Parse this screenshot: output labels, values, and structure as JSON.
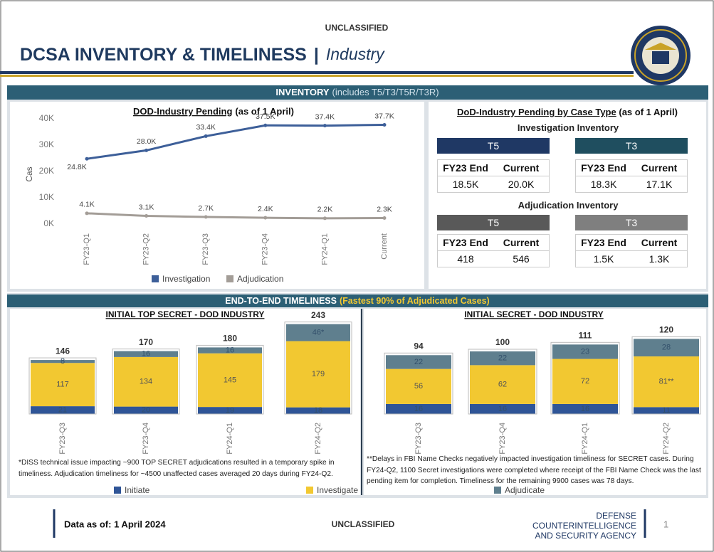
{
  "header": {
    "classification": "UNCLASSIFIED",
    "title": "DCSA INVENTORY & TIMELINESS",
    "separator": "|",
    "subtitle": "Industry"
  },
  "inventory": {
    "banner": "INVENTORY",
    "banner_note": "(includes T5/T3/T5R/T3R)"
  },
  "timeliness": {
    "banner": "END-TO-END TIMELINESS",
    "banner_note": "(Fastest 90% of Adjudicated Cases)"
  },
  "case_type": {
    "title": "DoD-Industry Pending by Case Type",
    "title_note": "(as of 1 April)",
    "sections": [
      {
        "label": "Investigation Inventory",
        "tables": [
          {
            "header": "T5",
            "columns": [
              "FY23 End",
              "Current"
            ],
            "values": [
              "18.5K",
              "20.0K"
            ]
          },
          {
            "header": "T3",
            "columns": [
              "FY23 End",
              "Current"
            ],
            "values": [
              "18.3K",
              "17.1K"
            ]
          }
        ]
      },
      {
        "label": "Adjudication Inventory",
        "tables": [
          {
            "header": "T5",
            "columns": [
              "FY23 End",
              "Current"
            ],
            "values": [
              "418",
              "546"
            ]
          },
          {
            "header": "T3",
            "columns": [
              "FY23 End",
              "Current"
            ],
            "values": [
              "1.5K",
              "1.3K"
            ]
          }
        ]
      }
    ]
  },
  "chart_data": [
    {
      "type": "line",
      "title": "DOD-Industry Pending",
      "title_note": "(as of 1 April)",
      "ylabel": "Cas",
      "categories": [
        "FY23-Q1",
        "FY23-Q2",
        "FY23-Q3",
        "FY23-Q4",
        "FY24-Q1",
        "Current"
      ],
      "series": [
        {
          "name": "Investigation",
          "color": "#3d5f99",
          "values": [
            24800,
            28000,
            33400,
            37500,
            37400,
            37700
          ],
          "value_labels": [
            "24.8K",
            "28.0K",
            "33.4K",
            "37.5K",
            "37.4K",
            "37.7K"
          ]
        },
        {
          "name": "Adjudication",
          "color": "#a39d97",
          "values": [
            4100,
            3100,
            2700,
            2400,
            2200,
            2300
          ],
          "value_labels": [
            "4.1K",
            "3.1K",
            "2.7K",
            "2.4K",
            "2.2K",
            "2.3K"
          ]
        }
      ],
      "ylim": [
        0,
        40000
      ],
      "yticks": [
        {
          "value": 0,
          "label": "0K"
        },
        {
          "value": 10000,
          "label": "10K"
        },
        {
          "value": 20000,
          "label": "20K"
        },
        {
          "value": 30000,
          "label": "30K"
        },
        {
          "value": 40000,
          "label": "40K"
        }
      ],
      "legend": "bottom"
    },
    {
      "type": "stacked_bar",
      "title": "INITIAL TOP SECRET - DOD INDUSTRY",
      "categories": [
        "FY23-Q3",
        "FY23-Q4",
        "FY24-Q1",
        "FY24-Q2"
      ],
      "series": [
        {
          "name": "Initiate",
          "color": "#2f5597",
          "values": [
            21,
            20,
            19,
            18
          ]
        },
        {
          "name": "Investigate",
          "color": "#f2c831",
          "values": [
            117,
            134,
            145,
            179
          ]
        },
        {
          "name": "Adjudicate",
          "color": "#5f7f8e",
          "values": [
            8,
            16,
            16,
            46
          ],
          "value_labels": [
            "8",
            "16",
            "16",
            "46*"
          ]
        }
      ],
      "totals": [
        146,
        170,
        180,
        243
      ],
      "note": "*DISS technical issue impacting ~900 TOP SECRET adjudications resulted in a temporary spike in timeliness. Adjudication timeliness for ~4500 unaffected cases averaged 20 days during FY24-Q2."
    },
    {
      "type": "stacked_bar",
      "title": "INITIAL SECRET - DOD INDUSTRY",
      "categories": [
        "FY23-Q3",
        "FY23-Q4",
        "FY24-Q1",
        "FY24-Q2"
      ],
      "series": [
        {
          "name": "Initiate",
          "color": "#2f5597",
          "values": [
            16,
            16,
            16,
            11
          ]
        },
        {
          "name": "Investigate",
          "color": "#f2c831",
          "values": [
            56,
            62,
            72,
            81
          ],
          "value_labels": [
            "56",
            "62",
            "72",
            "81**"
          ]
        },
        {
          "name": "Adjudicate",
          "color": "#5f7f8e",
          "values": [
            22,
            22,
            23,
            28
          ]
        }
      ],
      "totals": [
        94,
        100,
        111,
        120
      ],
      "note": "**Delays in FBI Name Checks negatively impacted investigation timeliness for SECRET cases. During FY24-Q2, 1100 Secret investigations were completed where receipt of the FBI Name Check was the last pending item for completion. Timeliness for the remaining 9900 cases was 78 days."
    }
  ],
  "footer": {
    "data_as_of": "Data as of: 1 April 2024",
    "classification": "UNCLASSIFIED",
    "agency": [
      "DEFENSE",
      "COUNTERINTELLIGENCE",
      "AND SECURITY AGENCY"
    ],
    "page": "1"
  }
}
